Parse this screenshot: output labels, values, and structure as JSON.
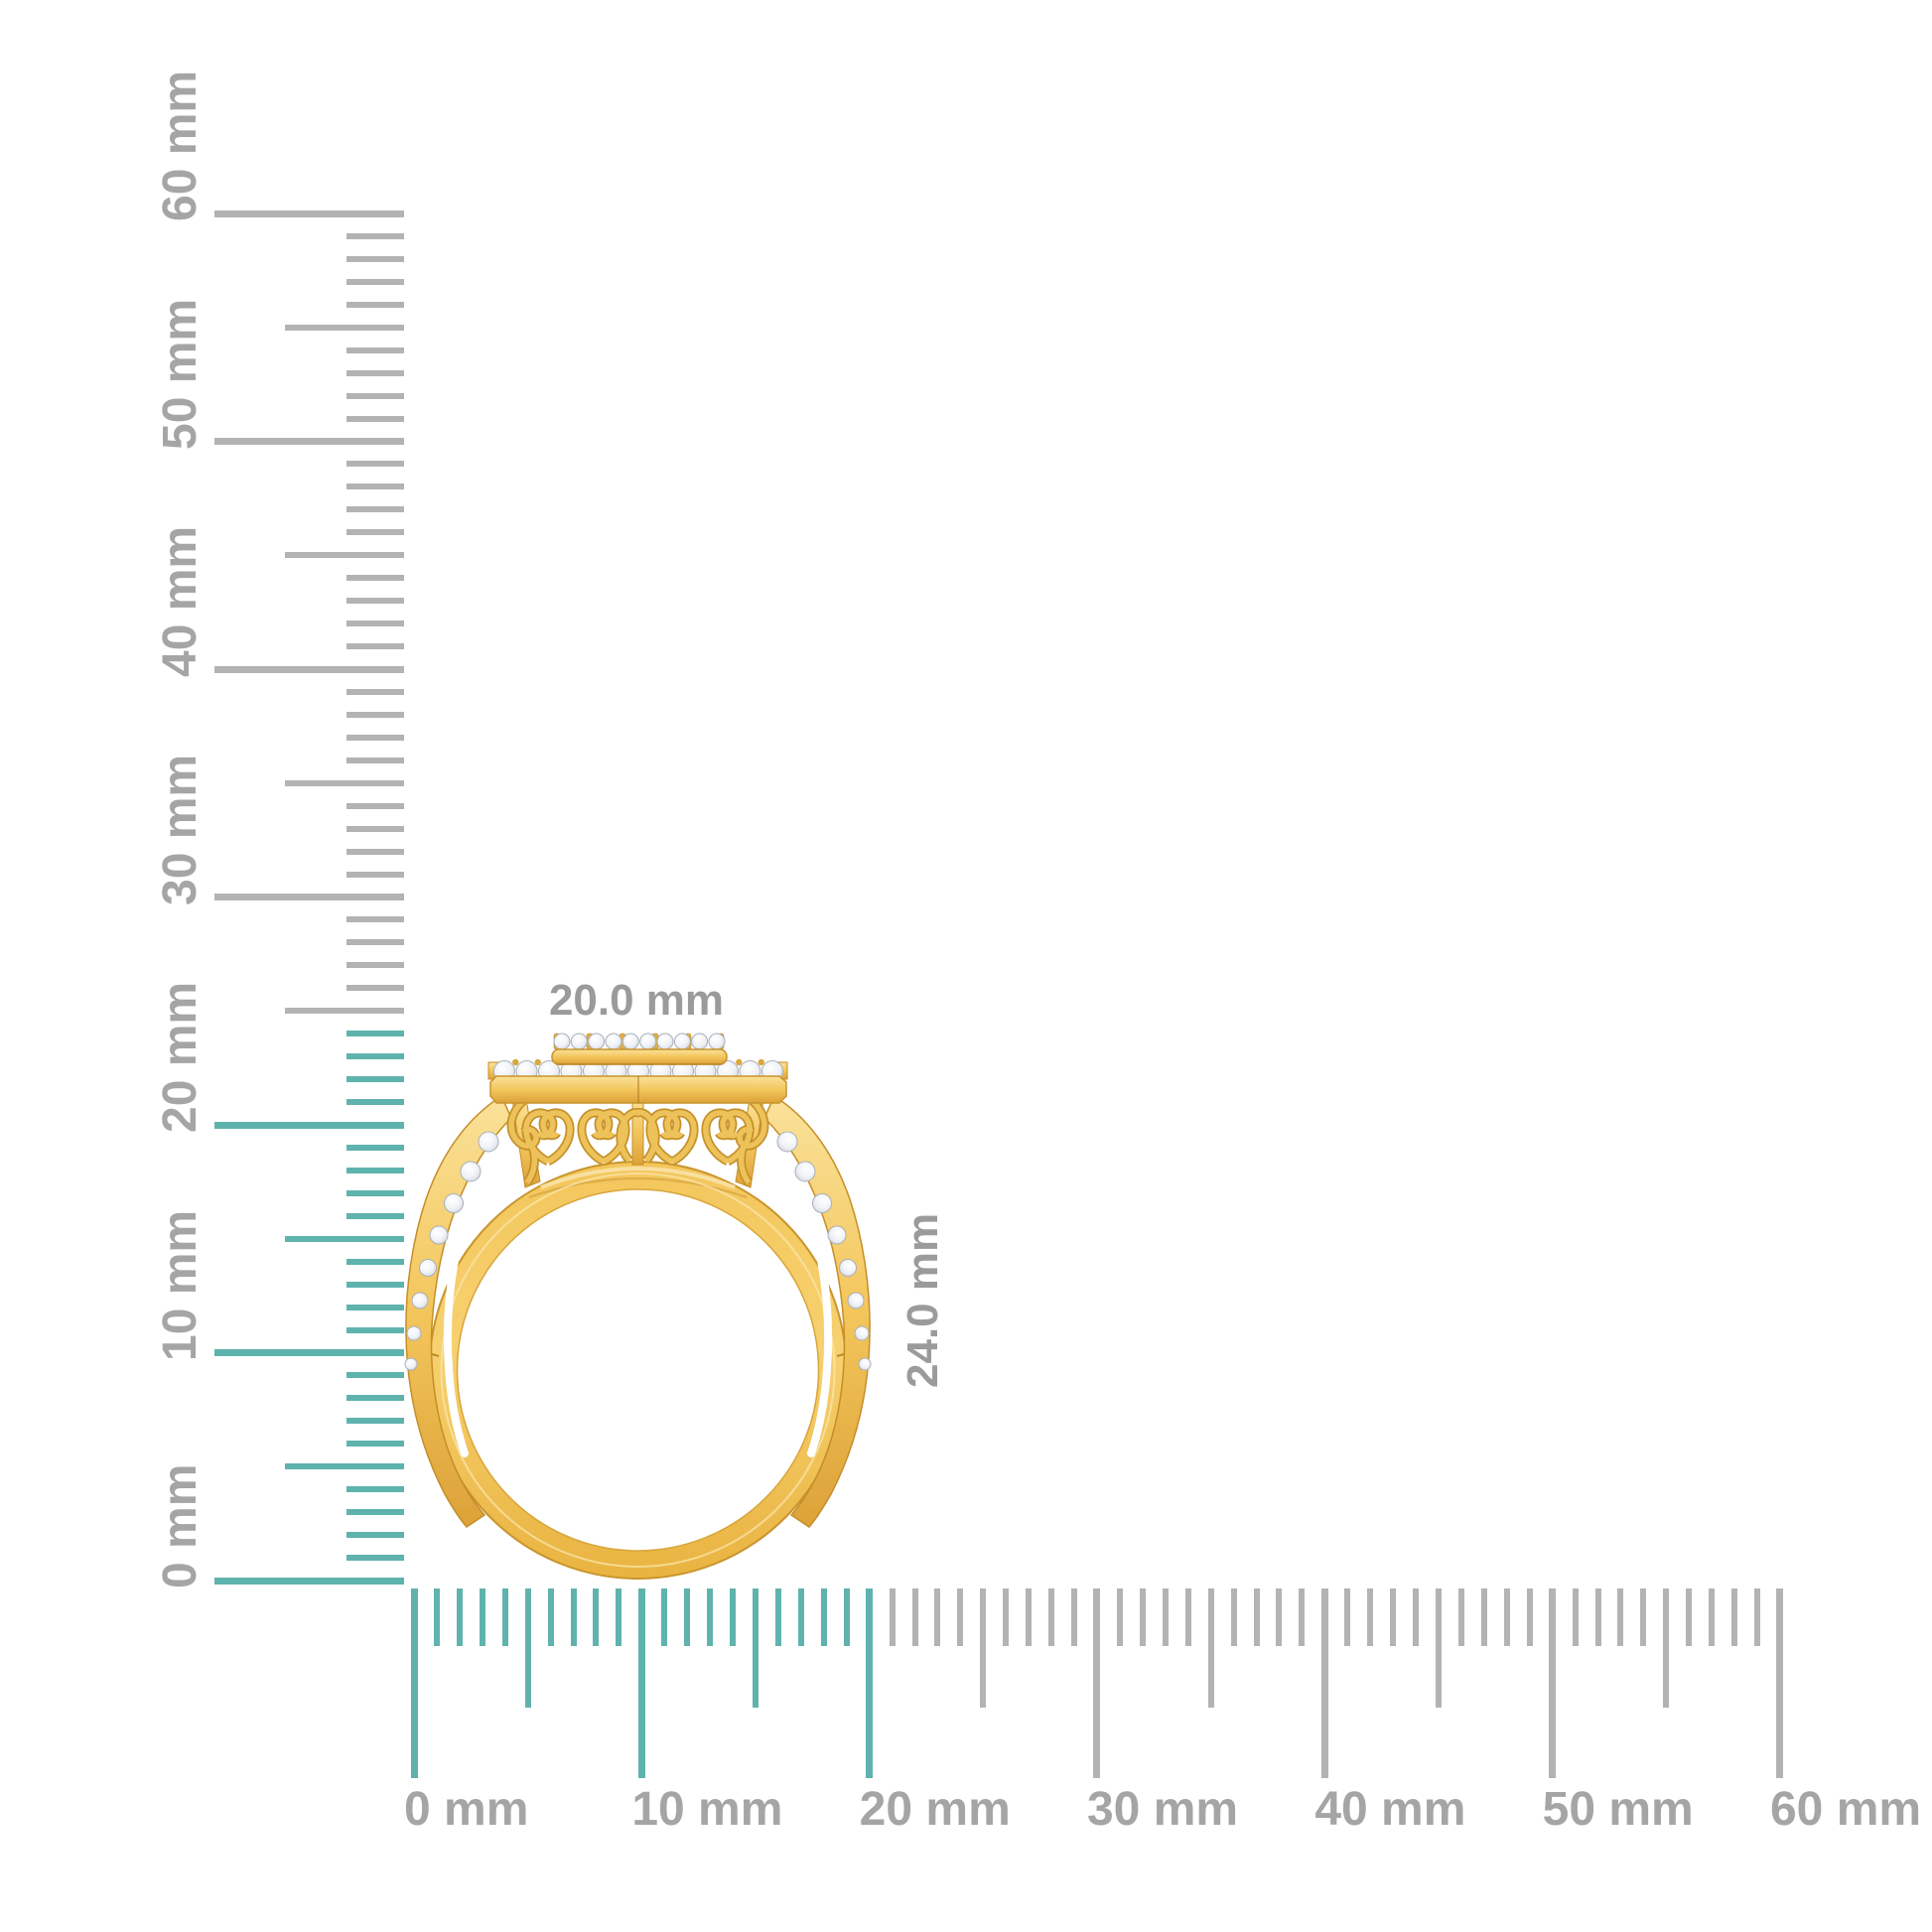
{
  "canvas": {
    "background": "#ffffff"
  },
  "rulers": {
    "unit": "mm",
    "tick_color": "#b3b3b3",
    "highlight_color": "#5fb3ad",
    "label_color": "#a5a5a5",
    "vertical": {
      "min_mm": 0,
      "max_mm": 60,
      "minor_step_mm": 1,
      "mid_step_mm": 5,
      "major_step_mm": 10,
      "highlight_up_to_mm": 24,
      "labels": [
        "0 mm",
        "10 mm",
        "20 mm",
        "30 mm",
        "40 mm",
        "50 mm",
        "60 mm"
      ]
    },
    "horizontal": {
      "min_mm": 0,
      "max_mm": 60,
      "minor_step_mm": 1,
      "mid_step_mm": 5,
      "major_step_mm": 10,
      "highlight_up_to_mm": 20,
      "labels": [
        "0 mm",
        "10 mm",
        "20 mm",
        "30 mm",
        "40 mm",
        "50 mm",
        "60 mm"
      ]
    }
  },
  "dimension_annotations": {
    "color": "#9b9b9b",
    "width": {
      "text": "20.0 mm"
    },
    "height": {
      "text": "24.0 mm"
    }
  },
  "product": {
    "type": "yellow-gold double-halo diamond ring, front profile view with filigree gallery and split pave shank",
    "metal_color_highlight": "#fae29a",
    "metal_color_base": "#f3c65c",
    "metal_color_shadow": "#dca238",
    "metal_edge_color": "#c9942c",
    "diamond_fill": "#f1f3f7",
    "diamond_edge": "#a9b0b8",
    "stones": {
      "top_row_count": 10,
      "halo_row_count": 13,
      "shoulder_row_count_per_side": 8
    }
  }
}
